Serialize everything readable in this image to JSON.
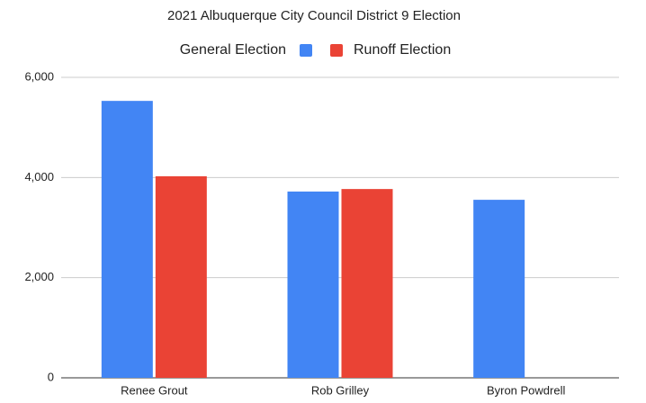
{
  "chart_data": {
    "type": "bar",
    "title": "2021 Albuquerque City Council District 9 Election",
    "categories": [
      "Renee Grout",
      "Rob Grilley",
      "Byron Powdrell"
    ],
    "series": [
      {
        "name": "General Election",
        "color": "#4285f4",
        "values": [
          5530,
          3720,
          3555
        ]
      },
      {
        "name": "Runoff Election",
        "color": "#ea4335",
        "values": [
          4025,
          3770,
          null
        ]
      }
    ],
    "ylim": [
      0,
      6000
    ],
    "yticks": [
      0,
      {
        "value": 2000,
        "label": "2,000"
      },
      {
        "value": 4000,
        "label": "4,000"
      },
      {
        "value": 6000,
        "label": "6,000"
      }
    ],
    "grid": true,
    "legend": "top"
  }
}
